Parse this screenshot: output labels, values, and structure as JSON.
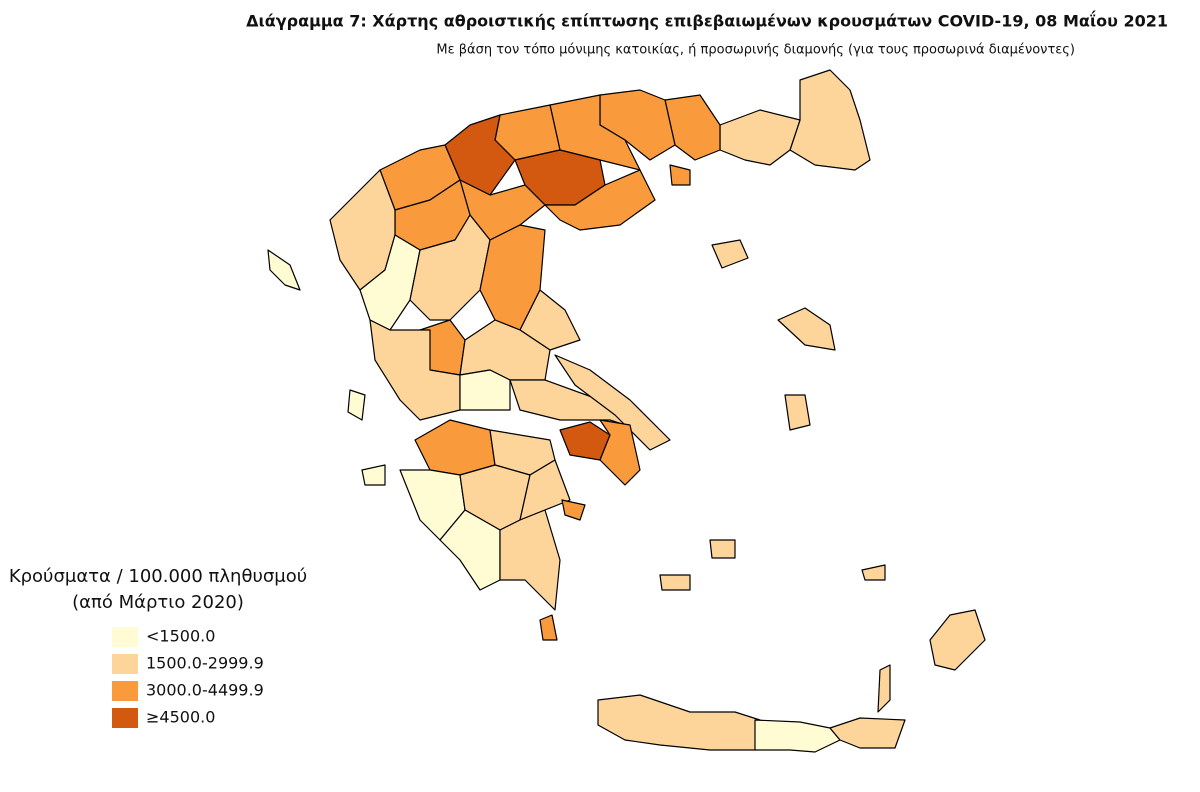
{
  "header": {
    "title": "Διάγραμμα 7: Χάρτης αθροιστικής επίπτωσης επιβεβαιωμένων κρουσμάτων COVID-19, 08 Μαΐου 2021",
    "subtitle": "Με βάση τον τόπο μόνιμης κατοικίας, ή προσωρινής διαμονής (για τους προσωρινά διαμένοντες)"
  },
  "legend": {
    "title_lines": [
      "Κρούσματα / 100.000 πληθυσμού",
      "(από Μάρτιο 2020)"
    ],
    "items": [
      {
        "label": "<1500.0",
        "color": "#fffbd2"
      },
      {
        "label": "1500.0-2999.9",
        "color": "#fdd49a"
      },
      {
        "label": "3000.0-4499.9",
        "color": "#f99a3c"
      },
      {
        "label": "≥4500.0",
        "color": "#d2590f"
      }
    ]
  }
}
